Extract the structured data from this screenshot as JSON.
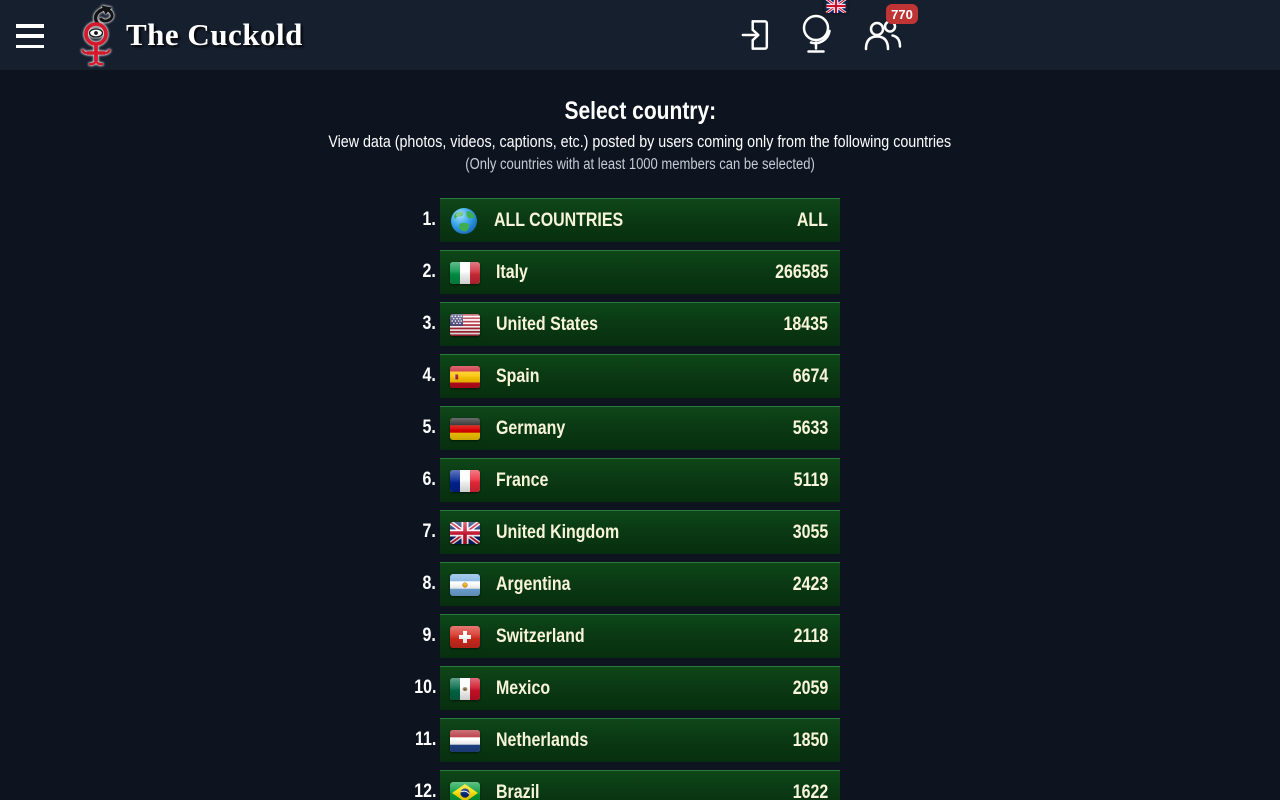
{
  "header": {
    "title": "The Cuckold",
    "members_badge": "770",
    "icons": {
      "menu": "hamburger-icon",
      "logo": "cuckold-symbol-icon",
      "login": "login-door-arrow-icon",
      "language": "desk-globe-icon-with-uk-flag",
      "members": "two-users-icon"
    }
  },
  "intro": {
    "heading": "Select country:",
    "line1": "View data (photos, videos, captions, etc.) posted by users coming only from the following countries",
    "line2": "(Only countries with at least 1000 members can be selected)"
  },
  "country_list": {
    "items": [
      {
        "rank": "1.",
        "flag": "globe",
        "name": "ALL COUNTRIES",
        "count": "ALL"
      },
      {
        "rank": "2.",
        "flag": "it",
        "name": "Italy",
        "count": "266585"
      },
      {
        "rank": "3.",
        "flag": "us",
        "name": "United States",
        "count": "18435"
      },
      {
        "rank": "4.",
        "flag": "es",
        "name": "Spain",
        "count": "6674"
      },
      {
        "rank": "5.",
        "flag": "de",
        "name": "Germany",
        "count": "5633"
      },
      {
        "rank": "6.",
        "flag": "fr",
        "name": "France",
        "count": "5119"
      },
      {
        "rank": "7.",
        "flag": "gb",
        "name": "United Kingdom",
        "count": "3055"
      },
      {
        "rank": "8.",
        "flag": "ar",
        "name": "Argentina",
        "count": "2423"
      },
      {
        "rank": "9.",
        "flag": "ch",
        "name": "Switzerland",
        "count": "2118"
      },
      {
        "rank": "10.",
        "flag": "mx",
        "name": "Mexico",
        "count": "2059"
      },
      {
        "rank": "11.",
        "flag": "nl",
        "name": "Netherlands",
        "count": "1850"
      },
      {
        "rank": "12.",
        "flag": "br",
        "name": "Brazil",
        "count": "1622"
      }
    ]
  },
  "colors": {
    "header_bg": "#161f2e",
    "body_bg": "#0d1420",
    "row_green": "#0a3a13",
    "row_border": "#2a7a3a",
    "badge_red": "#bf3434",
    "row_text_cream": "#f8f4da",
    "logo_red": "#d6182c"
  }
}
